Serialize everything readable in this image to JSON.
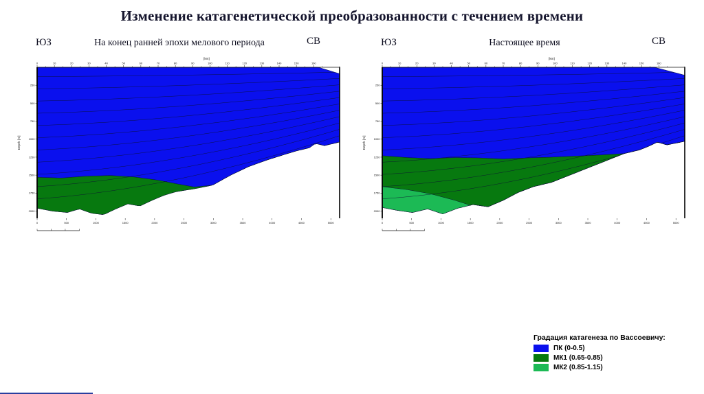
{
  "title": "Изменение катагенетической преобразованности с течением времени",
  "panels": [
    {
      "left_label": "ЮЗ",
      "caption": "На конец ранней эпохи мелового периода",
      "right_label": "СВ"
    },
    {
      "left_label": "ЮЗ",
      "caption": "Настоящее время",
      "right_label": "СВ"
    }
  ],
  "legend": {
    "title": "Градация катагенеза по Вассоевичу:",
    "items": [
      {
        "label": "ПК (0-0.5)",
        "color": "#0a10ee"
      },
      {
        "label": "МК1 (0.65-0.85)",
        "color": "#07790f"
      },
      {
        "label": "МК2 (0.85-1.15)",
        "color": "#1cba55"
      }
    ]
  },
  "chart_data": [
    {
      "type": "area",
      "title": "На конец ранней эпохи мелового периода",
      "x_top_axis": {
        "unit": "[km]",
        "ticks": [
          0,
          10,
          20,
          30,
          40,
          50,
          60,
          70,
          80,
          90,
          100,
          110,
          120,
          130,
          140,
          150,
          160
        ],
        "max": 175
      },
      "x_bottom_axis": {
        "ticks": [
          0,
          500,
          1000,
          1500,
          2000,
          2500,
          3000,
          3500,
          4000,
          4500,
          5000
        ],
        "max": 5150
      },
      "y_axis": {
        "label": "Depth [m]",
        "ticks": [
          250,
          500,
          750,
          1000,
          1250,
          1500,
          1750,
          2000
        ],
        "max_depth": 2100
      },
      "surface": [
        [
          0,
          0
        ],
        [
          0.93,
          0
        ],
        [
          1,
          90
        ]
      ],
      "section_base": [
        [
          0,
          1960
        ],
        [
          0.05,
          2000
        ],
        [
          0.1,
          2020
        ],
        [
          0.14,
          1970
        ],
        [
          0.18,
          2030
        ],
        [
          0.22,
          2050
        ],
        [
          0.26,
          1970
        ],
        [
          0.3,
          1900
        ],
        [
          0.34,
          1930
        ],
        [
          0.38,
          1850
        ],
        [
          0.42,
          1780
        ],
        [
          0.46,
          1730
        ],
        [
          0.52,
          1690
        ],
        [
          0.58,
          1640
        ],
        [
          0.64,
          1500
        ],
        [
          0.7,
          1380
        ],
        [
          0.76,
          1290
        ],
        [
          0.82,
          1210
        ],
        [
          0.86,
          1160
        ],
        [
          0.9,
          1120
        ],
        [
          0.92,
          1060
        ],
        [
          0.95,
          1090
        ],
        [
          1,
          1040
        ]
      ],
      "zones": [
        {
          "name": "ПК (0-0.5)",
          "color": "#0a10ee",
          "top": "surface"
        },
        {
          "name": "МК1 (0.65-0.85)",
          "color": "#07790f",
          "top": [
            [
              0,
              1530
            ],
            [
              0.08,
              1540
            ],
            [
              0.16,
              1515
            ],
            [
              0.24,
              1505
            ],
            [
              0.32,
              1525
            ],
            [
              0.4,
              1570
            ],
            [
              0.46,
              1620
            ],
            [
              0.52,
              1665
            ],
            [
              0.58,
              1640
            ],
            [
              0.62,
              1700
            ],
            [
              0.7,
              1900
            ],
            [
              1,
              2100
            ]
          ]
        }
      ],
      "horizons": [
        130,
        300,
        470,
        640,
        810,
        980,
        1150,
        1320,
        1490,
        1660,
        1830
      ],
      "horizon_right_ratio": 0.52
    },
    {
      "type": "area",
      "title": "Настоящее время",
      "x_top_axis": {
        "unit": "[km]",
        "ticks": [
          0,
          10,
          20,
          30,
          40,
          50,
          60,
          70,
          80,
          90,
          100,
          110,
          120,
          130,
          140,
          150,
          160
        ],
        "max": 175
      },
      "x_bottom_axis": {
        "ticks": [
          0,
          500,
          1000,
          1500,
          2000,
          2500,
          3000,
          3500,
          4000,
          4500,
          5000
        ],
        "max": 5150
      },
      "y_axis": {
        "label": "Depth [m]",
        "ticks": [
          250,
          500,
          750,
          1000,
          1250,
          1500,
          1750,
          2000
        ],
        "max_depth": 2100
      },
      "surface": [
        [
          0,
          0
        ],
        [
          0.9,
          0
        ],
        [
          1,
          110
        ]
      ],
      "section_base": [
        [
          0,
          1950
        ],
        [
          0.05,
          1990
        ],
        [
          0.1,
          2020
        ],
        [
          0.15,
          1970
        ],
        [
          0.2,
          2040
        ],
        [
          0.25,
          1960
        ],
        [
          0.3,
          1910
        ],
        [
          0.35,
          1940
        ],
        [
          0.4,
          1850
        ],
        [
          0.45,
          1740
        ],
        [
          0.5,
          1660
        ],
        [
          0.56,
          1600
        ],
        [
          0.62,
          1500
        ],
        [
          0.68,
          1400
        ],
        [
          0.74,
          1300
        ],
        [
          0.8,
          1200
        ],
        [
          0.85,
          1150
        ],
        [
          0.88,
          1100
        ],
        [
          0.91,
          1040
        ],
        [
          0.94,
          1080
        ],
        [
          1,
          1030
        ]
      ],
      "zones": [
        {
          "name": "ПК (0-0.5)",
          "color": "#0a10ee",
          "top": "surface"
        },
        {
          "name": "МК1 (0.65-0.85)",
          "color": "#07790f",
          "top": [
            [
              0,
              1230
            ],
            [
              0.08,
              1255
            ],
            [
              0.16,
              1270
            ],
            [
              0.24,
              1255
            ],
            [
              0.32,
              1260
            ],
            [
              0.4,
              1275
            ],
            [
              0.48,
              1260
            ],
            [
              0.56,
              1250
            ],
            [
              0.64,
              1235
            ],
            [
              0.72,
              1220
            ],
            [
              0.8,
              1200
            ],
            [
              1,
              1205
            ]
          ]
        },
        {
          "name": "МК2 (0.85-1.15)",
          "color": "#1cba55",
          "top": [
            [
              0,
              1660
            ],
            [
              0.08,
              1700
            ],
            [
              0.16,
              1760
            ],
            [
              0.24,
              1850
            ],
            [
              0.3,
              1930
            ],
            [
              0.36,
              2020
            ],
            [
              0.45,
              2100
            ],
            [
              1,
              2100
            ]
          ]
        }
      ],
      "horizons": [
        130,
        300,
        470,
        640,
        810,
        980,
        1150,
        1320,
        1490,
        1660,
        1830
      ],
      "horizon_right_ratio": 0.52
    }
  ]
}
